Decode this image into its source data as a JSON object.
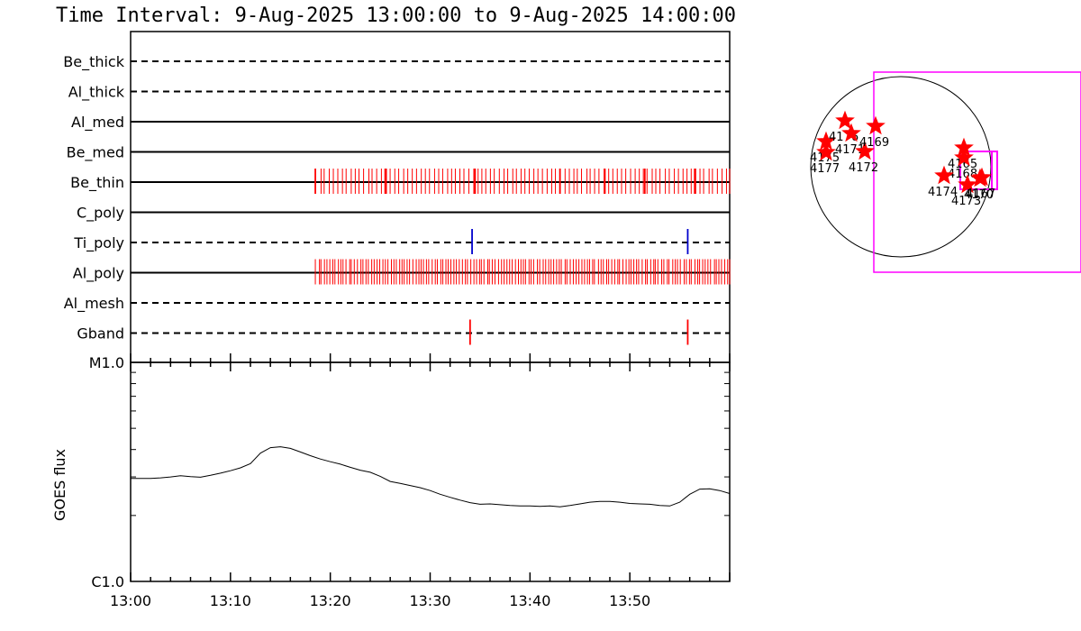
{
  "title": "Time Interval:  9-Aug-2025 13:00:00 to  9-Aug-2025 14:00:00",
  "chart_data": [
    {
      "type": "event-timeline",
      "x_range": [
        "13:00",
        "14:00"
      ],
      "rows": [
        {
          "label": "Be_thick",
          "style": "dashed",
          "events": []
        },
        {
          "label": "Al_thick",
          "style": "dashed",
          "events": []
        },
        {
          "label": "Al_med",
          "style": "solid",
          "events": []
        },
        {
          "label": "Be_med",
          "style": "solid",
          "events": []
        },
        {
          "label": "Be_thin",
          "style": "solid",
          "color": "#ff0000",
          "fill_from": "13:18.5",
          "fill_to": "14:00",
          "density": 95,
          "events": [
            "13:18.5",
            "13:25.5",
            "13:34.5",
            "13:43",
            "13:47.5",
            "13:51.5",
            "13:56.5"
          ]
        },
        {
          "label": "C_poly",
          "style": "solid",
          "events": []
        },
        {
          "label": "Ti_poly",
          "style": "dashed",
          "color": "#0000cc",
          "events": [
            "13:34.2",
            "13:55.8"
          ]
        },
        {
          "label": "Al_poly",
          "style": "solid",
          "color": "#ff0000",
          "fill_from": "13:18.5",
          "fill_to": "14:00",
          "density": 150,
          "events": []
        },
        {
          "label": "Al_mesh",
          "style": "dashed",
          "events": []
        },
        {
          "label": "Gband",
          "style": "dashed",
          "color": "#ff0000",
          "events": [
            "13:34",
            "13:55.8"
          ]
        }
      ]
    },
    {
      "type": "line",
      "ylabel": "GOES flux",
      "y_ticks": [
        "M1.0",
        "C1.0"
      ],
      "x_ticks": [
        "13:00",
        "13:10",
        "13:20",
        "13:30",
        "13:40",
        "13:50"
      ],
      "x_minutes": [
        0,
        1,
        2,
        3,
        4,
        5,
        6,
        7,
        8,
        9,
        10,
        11,
        12,
        13,
        14,
        15,
        16,
        17,
        18,
        19,
        20,
        21,
        22,
        23,
        24,
        25,
        26,
        27,
        28,
        29,
        30,
        31,
        32,
        33,
        34,
        35,
        36,
        37,
        38,
        39,
        40,
        41,
        42,
        43,
        44,
        45,
        46,
        47,
        48,
        49,
        50,
        51,
        52,
        53,
        54,
        55,
        56,
        57,
        58,
        59,
        60
      ],
      "values": [
        2.95,
        2.95,
        2.95,
        2.97,
        3.0,
        3.04,
        3.01,
        2.99,
        3.05,
        3.12,
        3.2,
        3.3,
        3.45,
        3.85,
        4.08,
        4.12,
        4.05,
        3.9,
        3.75,
        3.62,
        3.52,
        3.43,
        3.32,
        3.22,
        3.15,
        3.02,
        2.86,
        2.8,
        2.74,
        2.68,
        2.6,
        2.5,
        2.42,
        2.35,
        2.29,
        2.25,
        2.26,
        2.24,
        2.22,
        2.21,
        2.21,
        2.2,
        2.21,
        2.19,
        2.22,
        2.26,
        2.3,
        2.32,
        2.32,
        2.3,
        2.27,
        2.26,
        2.25,
        2.22,
        2.21,
        2.3,
        2.5,
        2.64,
        2.65,
        2.6,
        2.52
      ]
    },
    {
      "type": "scatter",
      "name": "solar disk map",
      "points": [
        {
          "label": "4175",
          "x": -0.83,
          "y": 0.28
        },
        {
          "label": "4176",
          "x": -0.62,
          "y": 0.51
        },
        {
          "label": "4171",
          "x": -0.55,
          "y": 0.37
        },
        {
          "label": "4172",
          "x": -0.4,
          "y": 0.17
        },
        {
          "label": "4169",
          "x": -0.28,
          "y": 0.45
        },
        {
          "label": "4177",
          "x": -0.83,
          "y": 0.16
        },
        {
          "label": "4165",
          "x": 0.7,
          "y": 0.21
        },
        {
          "label": "4168",
          "x": 0.7,
          "y": 0.1
        },
        {
          "label": "4174",
          "x": 0.48,
          "y": -0.1
        },
        {
          "label": "4173",
          "x": 0.74,
          "y": -0.2
        },
        {
          "label": "4170",
          "x": 0.88,
          "y": -0.13
        },
        {
          "label": "4167",
          "x": 0.9,
          "y": -0.12
        }
      ]
    }
  ]
}
